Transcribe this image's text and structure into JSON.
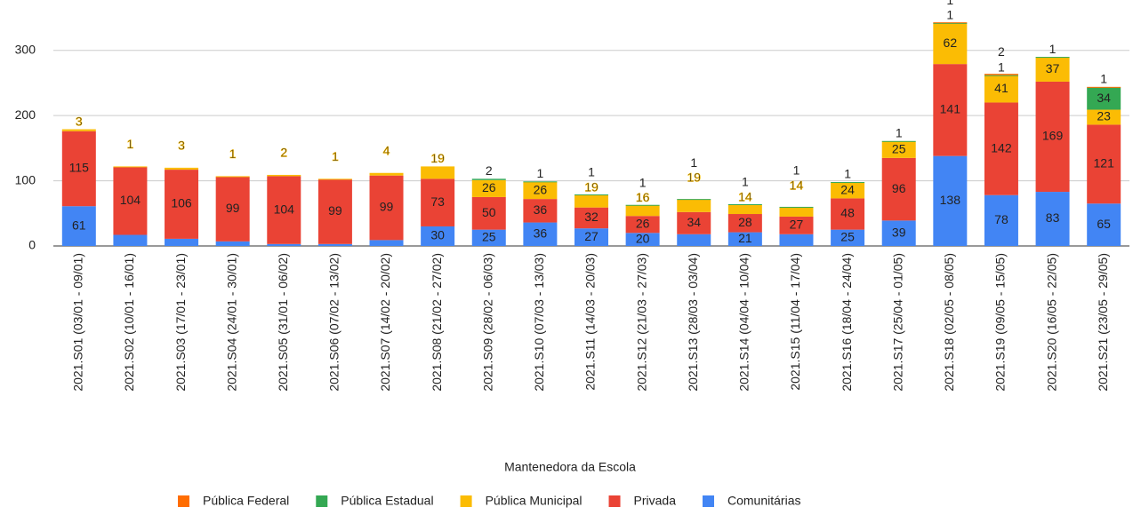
{
  "chart_data": {
    "type": "bar",
    "stacked": true,
    "legend_title": "Mantenedora da Escola",
    "categories": [
      "2021.S01 (03/01 - 09/01)",
      "2021.S02 (10/01 - 16/01)",
      "2021.S03 (17/01 - 23/01)",
      "2021.S04 (24/01 - 30/01)",
      "2021.S05 (31/01 - 06/02)",
      "2021.S06 (07/02 - 13/02)",
      "2021.S07 (14/02 - 20/02)",
      "2021.S08 (21/02 - 27/02)",
      "2021.S09 (28/02 - 06/03)",
      "2021.S10 (07/03 - 13/03)",
      "2021.S11 (14/03 - 20/03)",
      "2021.S12 (21/03 - 27/03)",
      "2021.S13 (28/03 - 03/04)",
      "2021.S14 (04/04 - 10/04)",
      "2021.S15 (11/04 - 17/04)",
      "2021.S16 (18/04 - 24/04)",
      "2021.S17 (25/04 - 01/05)",
      "2021.S18 (02/05 - 08/05)",
      "2021.S19 (09/05 - 15/05)",
      "2021.S20 (16/05 - 22/05)",
      "2021.S21 (23/05 - 29/05)"
    ],
    "series": [
      {
        "name": "Comunitárias",
        "color": "#4285f4",
        "values": [
          61,
          17,
          11,
          7,
          3,
          3,
          9,
          30,
          25,
          36,
          27,
          20,
          18,
          21,
          18,
          25,
          39,
          138,
          78,
          83,
          65
        ]
      },
      {
        "name": "Privada",
        "color": "#ea4335",
        "values": [
          115,
          104,
          106,
          99,
          104,
          99,
          99,
          73,
          50,
          36,
          32,
          26,
          34,
          28,
          27,
          48,
          96,
          141,
          142,
          169,
          121
        ]
      },
      {
        "name": "Pública Municipal",
        "color": "#fbbc04",
        "values": [
          3,
          1,
          3,
          1,
          2,
          1,
          4,
          19,
          26,
          26,
          19,
          16,
          19,
          14,
          14,
          24,
          25,
          62,
          41,
          37,
          23
        ]
      },
      {
        "name": "Pública Estadual",
        "color": "#34a853",
        "values": [
          null,
          null,
          null,
          null,
          null,
          null,
          null,
          null,
          2,
          1,
          1,
          1,
          1,
          1,
          1,
          1,
          1,
          1,
          1,
          1,
          34
        ]
      },
      {
        "name": "Pública Federal",
        "color": "#ff6d01",
        "values": [
          null,
          null,
          null,
          null,
          null,
          null,
          null,
          null,
          null,
          null,
          null,
          null,
          null,
          null,
          null,
          null,
          null,
          1,
          2,
          null,
          1
        ]
      }
    ],
    "ylim": [
      0,
      350
    ],
    "yticks": [
      0,
      100,
      200,
      300
    ],
    "grid": true
  }
}
